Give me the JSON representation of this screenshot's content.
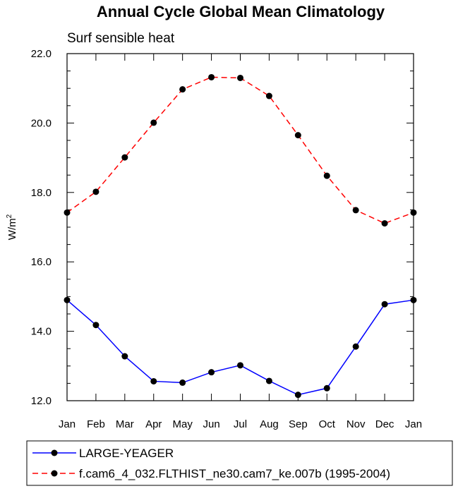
{
  "chart_data": {
    "type": "line",
    "title": "Annual Cycle Global Mean Climatology",
    "subtitle": "Surf sensible heat",
    "xlabel": "",
    "ylabel": "W/m",
    "ylabel_sup": "2",
    "categories": [
      "Jan",
      "Feb",
      "Mar",
      "Apr",
      "May",
      "Jun",
      "Jul",
      "Aug",
      "Sep",
      "Oct",
      "Nov",
      "Dec",
      "Jan"
    ],
    "ylim": [
      12.0,
      22.0
    ],
    "yticks": [
      "12.0",
      "14.0",
      "16.0",
      "18.0",
      "20.0",
      "22.0"
    ],
    "grid": false,
    "legend_position": "bottom",
    "series": [
      {
        "name": "LARGE-YEAGER",
        "color": "#0000ff",
        "dash": "solid",
        "values": [
          14.9,
          14.18,
          13.28,
          12.56,
          12.52,
          12.82,
          13.02,
          12.57,
          12.17,
          12.36,
          13.56,
          14.78,
          14.9
        ]
      },
      {
        "name": "f.cam6_4_032.FLTHIST_ne30.cam7_ke.007b (1995-2004)",
        "color": "#ff0000",
        "dash": "dashed",
        "values": [
          17.42,
          18.02,
          19.01,
          20.01,
          20.97,
          21.32,
          21.3,
          20.78,
          19.65,
          18.48,
          17.49,
          17.11,
          17.42
        ]
      }
    ]
  }
}
